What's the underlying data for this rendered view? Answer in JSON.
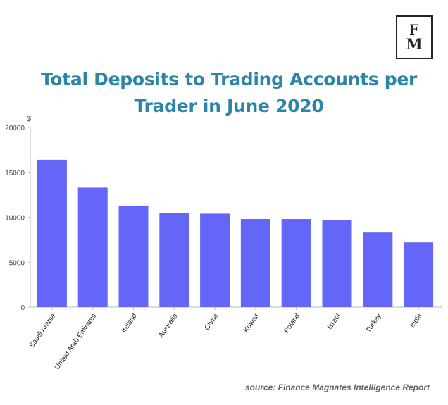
{
  "logo": {
    "line1": "F",
    "line2": "M"
  },
  "source": "source: Finance Magnates Intelligence Report",
  "chart_data": {
    "type": "bar",
    "title": "Total Deposits to Trading Accounts per Trader in June 2020",
    "ylabel": "$",
    "xlabel": "",
    "ylim": [
      0,
      20000
    ],
    "yticks": [
      0,
      5000,
      10000,
      15000,
      20000
    ],
    "grid": false,
    "bar_color": "#6366f6",
    "categories": [
      "Saudi Arabia",
      "United Arab Emirates",
      "Ireland",
      "Australia",
      "China",
      "Kuwait",
      "Poland",
      "Israel",
      "Turkey",
      "India"
    ],
    "values": [
      16400,
      13300,
      11300,
      10500,
      10400,
      9800,
      9800,
      9700,
      8300,
      7200
    ]
  }
}
